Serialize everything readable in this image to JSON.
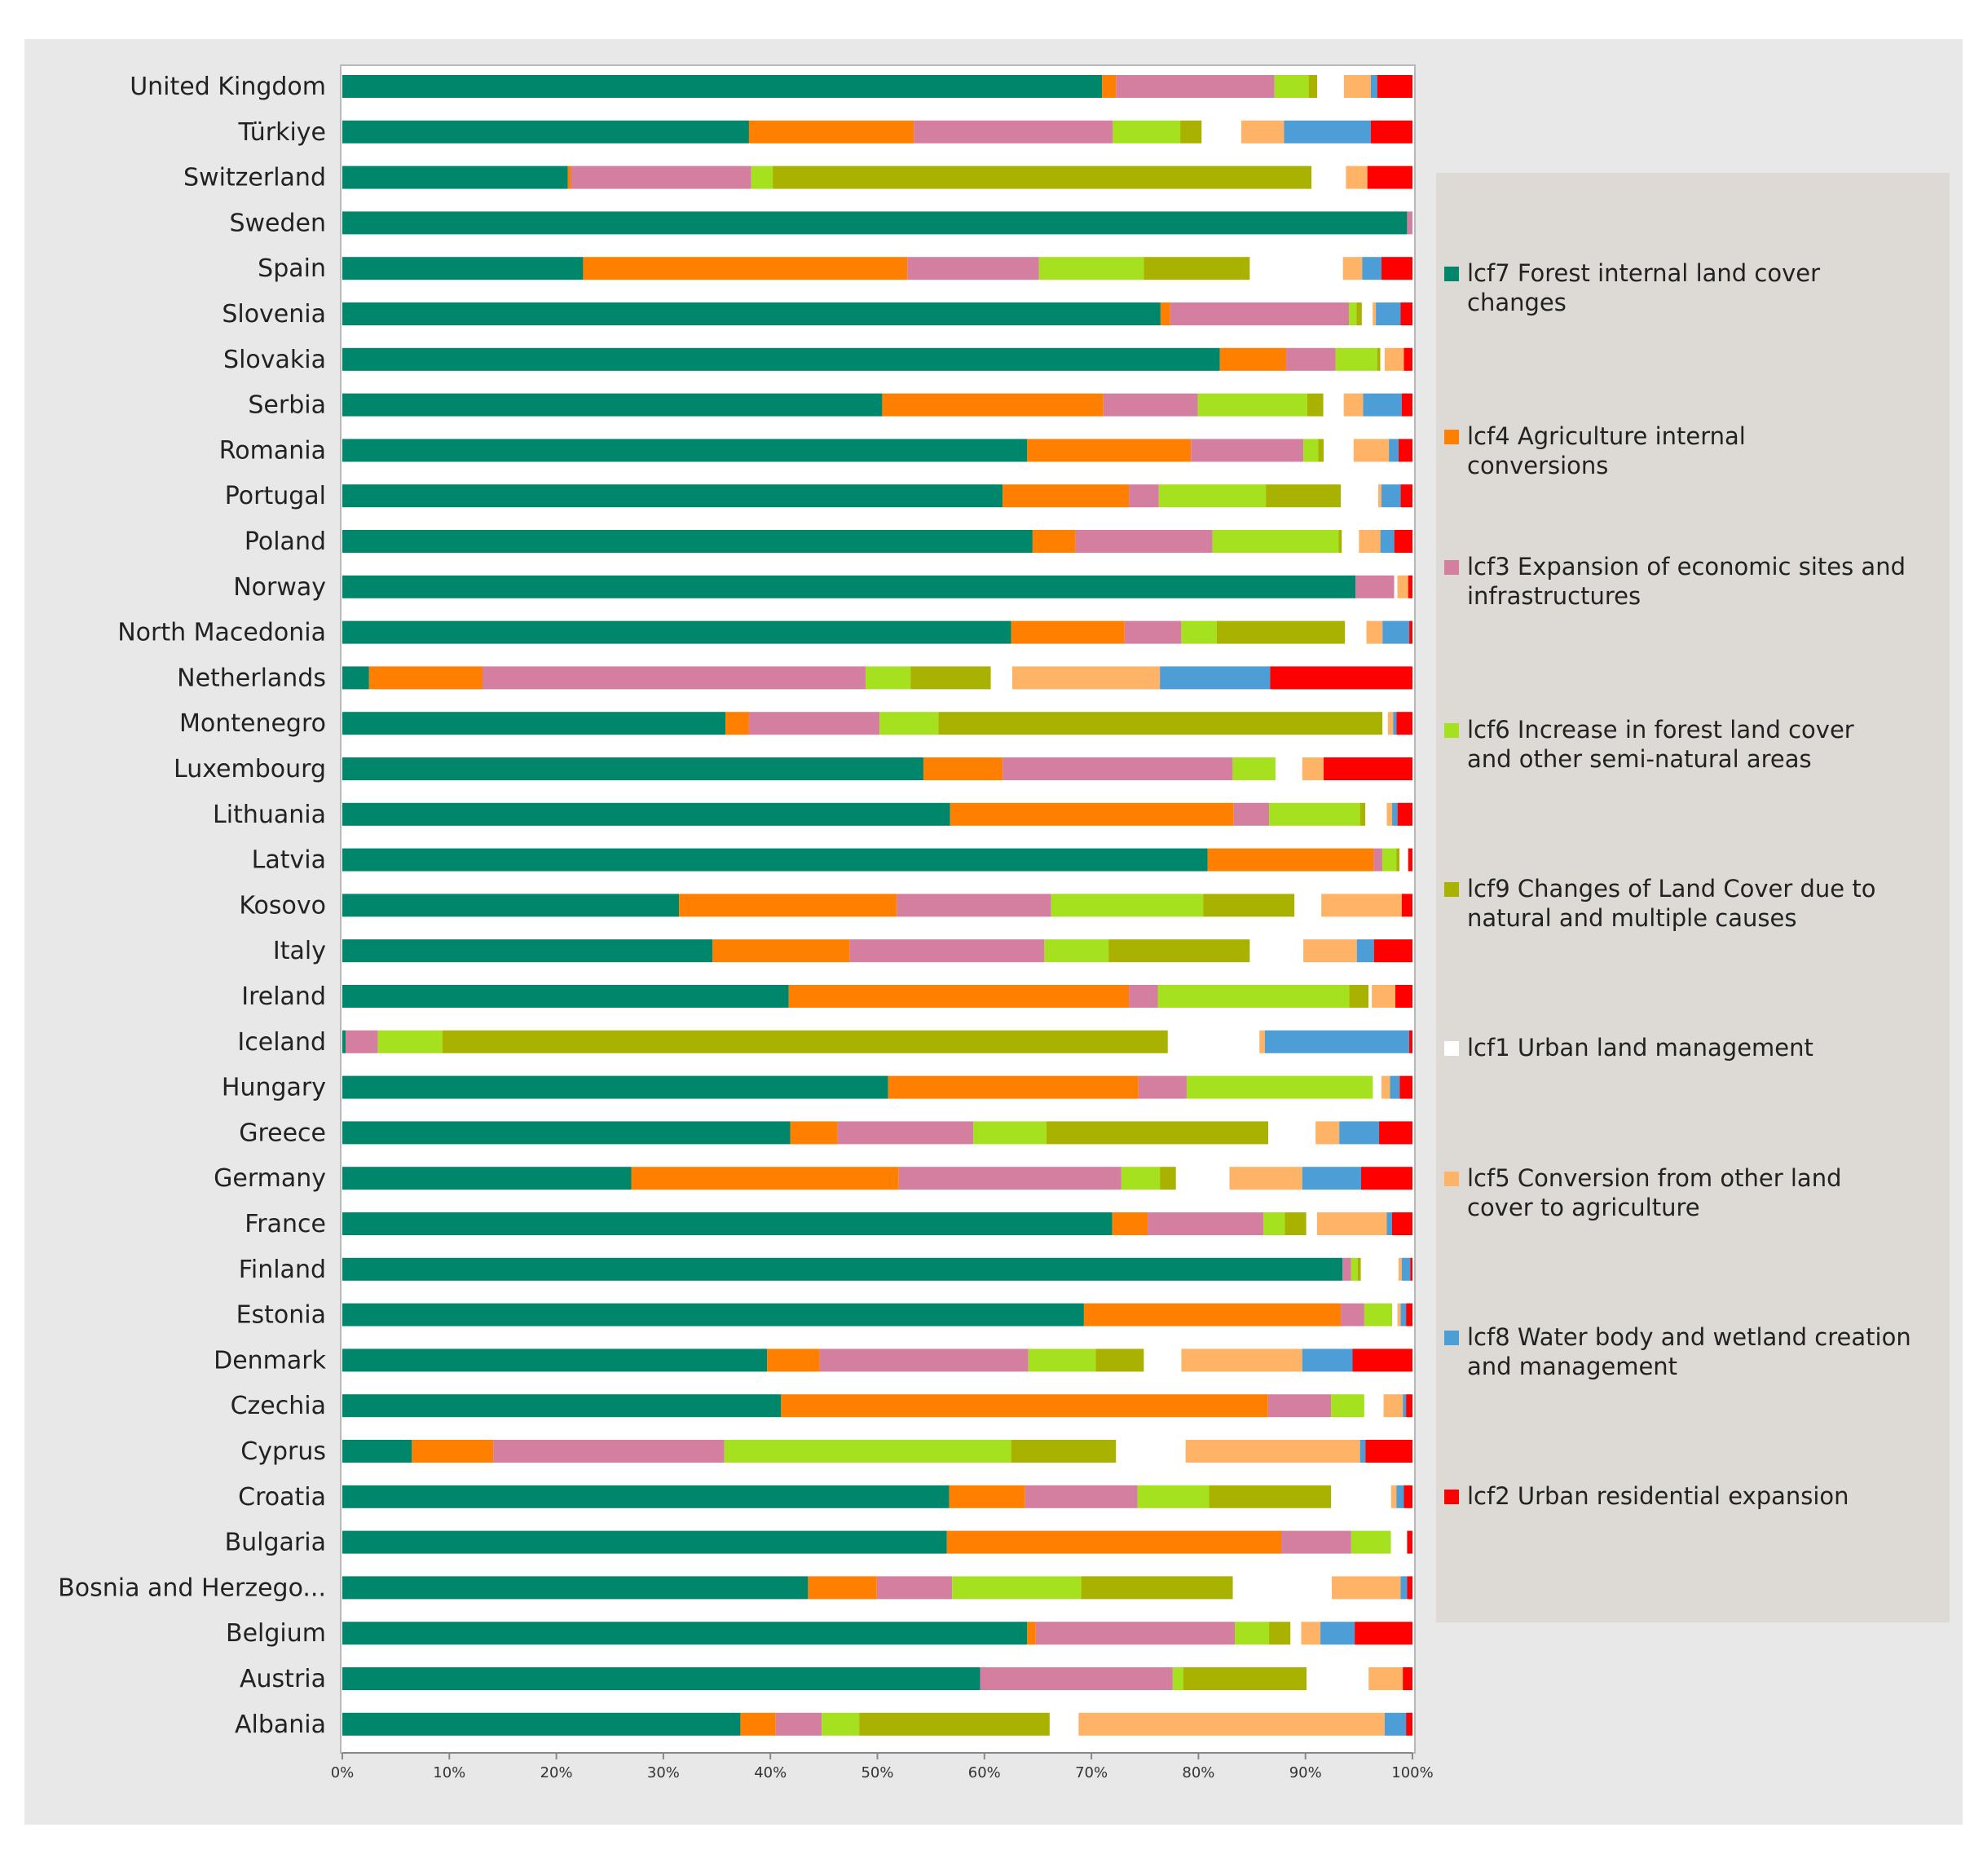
{
  "chart_data": {
    "type": "bar",
    "orientation": "horizontal",
    "stacked": true,
    "normalized_percent": true,
    "title": "",
    "xlabel": "",
    "ylabel": "",
    "xlim": [
      0,
      100
    ],
    "x_ticks": [
      "0%",
      "10%",
      "20%",
      "30%",
      "40%",
      "50%",
      "60%",
      "70%",
      "80%",
      "90%",
      "100%"
    ],
    "grid": false,
    "legend_position": "right",
    "categories": [
      "United Kingdom",
      "Türkiye",
      "Switzerland",
      "Sweden",
      "Spain",
      "Slovenia",
      "Slovakia",
      "Serbia",
      "Romania",
      "Portugal",
      "Poland",
      "Norway",
      "North Macedonia",
      "Netherlands",
      "Montenegro",
      "Luxembourg",
      "Lithuania",
      "Latvia",
      "Kosovo",
      "Italy",
      "Ireland",
      "Iceland",
      "Hungary",
      "Greece",
      "Germany",
      "France",
      "Finland",
      "Estonia",
      "Denmark",
      "Czechia",
      "Cyprus",
      "Croatia",
      "Bulgaria",
      "Bosnia and Herzego...",
      "Belgium",
      "Austria",
      "Albania"
    ],
    "series": [
      {
        "name": "lcf7 Forest internal land cover changes",
        "color": "#00876b",
        "values": [
          71,
          38,
          21,
          99,
          22.5,
          76,
          82,
          50.3,
          64,
          61.7,
          64.5,
          94.2,
          62.5,
          2.5,
          35.8,
          54.3,
          56.8,
          80.3,
          31.4,
          34.6,
          41.7,
          0.3,
          51,
          41.6,
          27,
          71.8,
          93,
          69.3,
          39.7,
          41,
          6.5,
          56.7,
          56.2,
          43.3,
          64,
          59.6,
          37.2
        ]
      },
      {
        "name": "lcf4 Agriculture internal conversions",
        "color": "#ff8000",
        "values": [
          1.3,
          15.4,
          0.3,
          0,
          30.3,
          0.9,
          6.2,
          20.6,
          15.3,
          11.8,
          4,
          0,
          10.6,
          10.6,
          2.2,
          7.4,
          26.5,
          15.4,
          20.3,
          12.8,
          31.8,
          0,
          23.4,
          4.4,
          25,
          3.3,
          0,
          24,
          4.9,
          45.5,
          7.6,
          7.1,
          31.1,
          6.4,
          0.8,
          0,
          3.3
        ]
      },
      {
        "name": "lcf3 Expansion of economic sites and infrastructures",
        "color": "#d47fa0",
        "values": [
          14.8,
          18.6,
          16.8,
          0.5,
          12.3,
          16.6,
          4.6,
          8.8,
          10.5,
          2.8,
          12.8,
          3.6,
          5.3,
          35.8,
          12.2,
          21.5,
          3.3,
          0.8,
          14.4,
          18.2,
          2.7,
          3,
          4.5,
          12.6,
          20.8,
          10.8,
          0.8,
          2.2,
          19.5,
          5.9,
          21.6,
          10.5,
          6.5,
          7,
          18.6,
          18,
          4.3
        ]
      },
      {
        "name": "lcf6 Increase in forest land cover and other semi-natural areas",
        "color": "#a6e11f",
        "values": [
          3.2,
          6.3,
          2,
          0,
          9.8,
          0.7,
          3.9,
          10.2,
          1.4,
          10,
          11.8,
          0,
          3.3,
          4.2,
          5.5,
          4,
          8.5,
          1.3,
          14.2,
          6,
          17.9,
          6,
          17.4,
          6.8,
          3.6,
          2,
          0.6,
          2.6,
          6.3,
          3.1,
          26.8,
          6.7,
          3.7,
          12,
          3.2,
          1,
          3.5
        ]
      },
      {
        "name": "lcf9 Changes of Land Cover due to natural and multiple causes",
        "color": "#a9b200",
        "values": [
          0.8,
          2,
          50.2,
          0,
          9.9,
          0.5,
          0.3,
          1.5,
          0.5,
          7,
          0.3,
          0,
          12,
          7.5,
          41.5,
          0,
          0.5,
          0.3,
          8.5,
          13.2,
          1.8,
          67.3,
          0,
          20.6,
          1.5,
          2,
          0.3,
          0,
          4.5,
          0,
          9.8,
          11.4,
          0,
          14.1,
          2,
          11.5,
          17.8
        ]
      },
      {
        "name": "lcf1 Urban land management",
        "color": "#ffffff",
        "values": [
          2.5,
          3.7,
          3.2,
          0,
          8.7,
          1,
          0.4,
          1.9,
          2.8,
          3.5,
          1.6,
          0.3,
          2,
          2,
          0.5,
          2.5,
          2,
          0.8,
          2.5,
          5,
          0.3,
          8.5,
          0.8,
          4.4,
          5,
          1,
          3.5,
          0.5,
          3.5,
          1.8,
          6.5,
          5.6,
          1.5,
          9.2,
          1,
          5.8,
          2.7
        ]
      },
      {
        "name": "lcf5 Conversion from other land cover to agriculture",
        "color": "#ffb366",
        "values": [
          2.5,
          4,
          2,
          0,
          1.8,
          0.3,
          1.8,
          1.8,
          3.3,
          0.3,
          2,
          1,
          1.5,
          13.8,
          0.5,
          2,
          0.5,
          0,
          7.5,
          5,
          2.2,
          0.5,
          0.8,
          2.2,
          6.8,
          6.5,
          0.3,
          0.3,
          11.3,
          1.8,
          16.3,
          0.5,
          0,
          6.4,
          1.8,
          3.2,
          28.6
        ]
      },
      {
        "name": "lcf8 Water body and wetland creation and management",
        "color": "#4d9ed6",
        "values": [
          0.6,
          8.1,
          0,
          0,
          1.8,
          2.3,
          0,
          3.6,
          0.9,
          1.8,
          1.3,
          0,
          2.5,
          10.3,
          0.3,
          0,
          0.5,
          0,
          0,
          1.6,
          0,
          13.4,
          0.9,
          3.7,
          5.5,
          0.5,
          0.8,
          0.5,
          4.7,
          0.3,
          0.5,
          0.7,
          0,
          0.6,
          3.2,
          0,
          2
        ]
      },
      {
        "name": "lcf2 Urban residential expansion",
        "color": "#ff0000",
        "values": [
          3.3,
          3.9,
          4.2,
          0,
          2.9,
          1.1,
          0.8,
          1,
          1.3,
          1.1,
          1.7,
          0.4,
          0.3,
          13.3,
          1.5,
          8.3,
          1.4,
          0.4,
          1,
          3.6,
          1.6,
          0.3,
          1.2,
          3.1,
          4.8,
          1.9,
          0.2,
          0.6,
          5.6,
          0.6,
          4.4,
          0.8,
          0.5,
          0.5,
          5.4,
          0.9,
          0.6
        ]
      }
    ],
    "legend": [
      {
        "code": "lcf7",
        "text": "lcf7 Forest internal land cover changes"
      },
      {
        "code": "lcf4",
        "text": "lcf4 Agriculture internal conversions"
      },
      {
        "code": "lcf3",
        "text": "lcf3 Expansion of economic sites and infrastructures"
      },
      {
        "code": "lcf6",
        "text": "lcf6 Increase in forest land cover and other semi-natural areas"
      },
      {
        "code": "lcf9",
        "text": "lcf9 Changes of Land Cover due to natural and multiple causes"
      },
      {
        "code": "lcf1",
        "text": "lcf1 Urban land management"
      },
      {
        "code": "lcf5",
        "text": "lcf5 Conversion from other land cover to agriculture"
      },
      {
        "code": "lcf8",
        "text": "lcf8 Water body and wetland creation and management"
      },
      {
        "code": "lcf2",
        "text": "lcf2 Urban residential expansion"
      }
    ]
  }
}
